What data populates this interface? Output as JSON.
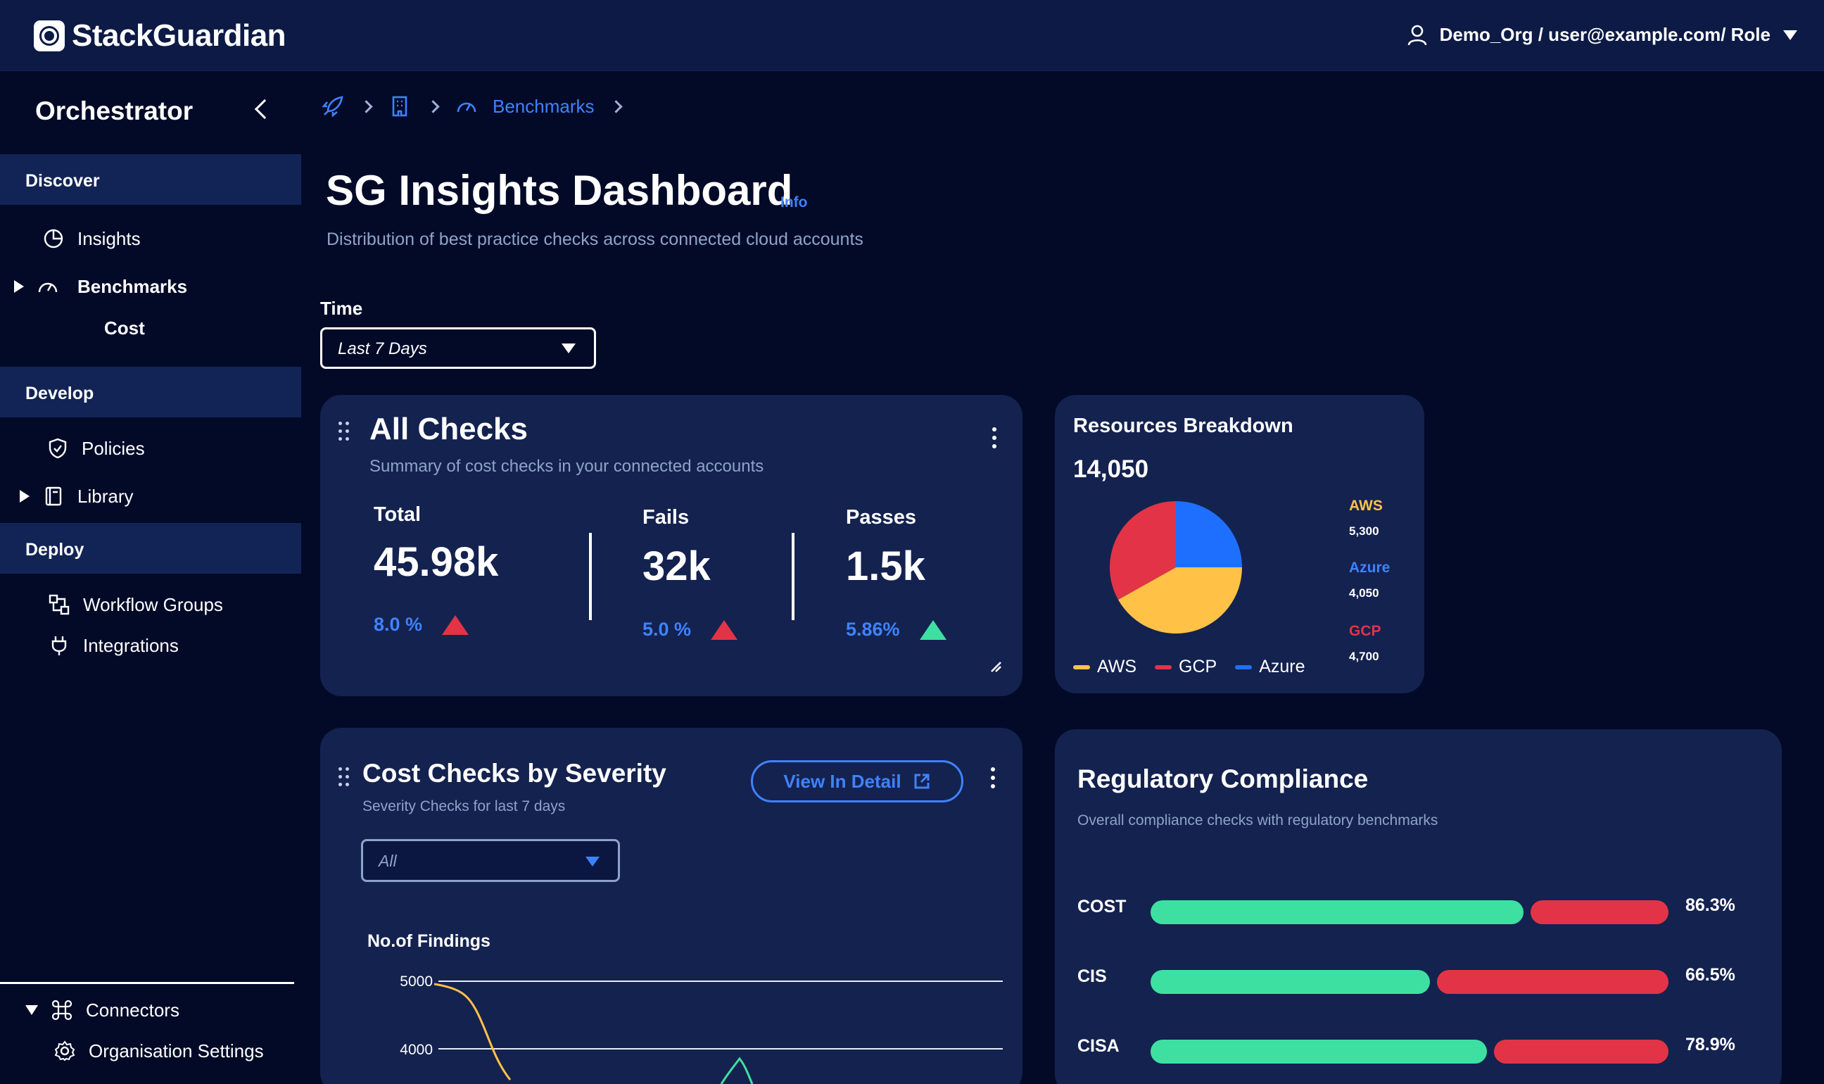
{
  "header": {
    "brand": "StackGuardian",
    "user_label": "Demo_Org / user@example.com/ Role"
  },
  "sidebar": {
    "title": "Orchestrator",
    "sections": {
      "discover": "Discover",
      "develop": "Develop",
      "deploy": "Deploy"
    },
    "items": {
      "insights": "Insights",
      "benchmarks": "Benchmarks",
      "cost": "Cost",
      "policies": "Policies",
      "library": "Library",
      "workflow_groups": "Workflow Groups",
      "integrations": "Integrations",
      "connectors": "Connectors",
      "org_settings": "Organisation Settings"
    }
  },
  "breadcrumb": {
    "current": "Benchmarks"
  },
  "page": {
    "title": "SG Insights Dashboard",
    "info": "Info",
    "subtitle": "Distribution of best practice checks across connected cloud accounts"
  },
  "time_filter": {
    "label": "Time",
    "value": "Last 7 Days"
  },
  "all_checks": {
    "title": "All Checks",
    "subtitle": "Summary of cost checks in your connected accounts",
    "total": {
      "label": "Total",
      "value": "45.98k",
      "pct": "8.0 %"
    },
    "fails": {
      "label": "Fails",
      "value": "32k",
      "pct": "5.0 %"
    },
    "passes": {
      "label": "Passes",
      "value": "1.5k",
      "pct": "5.86%"
    }
  },
  "resources": {
    "title": "Resources Breakdown",
    "total": "14,050",
    "aws_label": "AWS",
    "aws_value": "5,300",
    "azure_label": "Azure",
    "azure_value": "4,050",
    "gcp_label": "GCP",
    "gcp_value": "4,700",
    "legend": [
      "AWS",
      "GCP",
      "Azure"
    ],
    "colors": {
      "aws": "#ffc247",
      "gcp": "#e23446",
      "azure": "#1f6fff"
    }
  },
  "severity": {
    "title": "Cost Checks by Severity",
    "subtitle": "Severity Checks for last 7 days",
    "view_button": "View In Detail",
    "filter_value": "All",
    "y_label": "No.of Findings",
    "ticks": [
      "5000",
      "4000"
    ]
  },
  "compliance": {
    "title": "Regulatory Compliance",
    "subtitle": "Overall compliance checks with regulatory benchmarks",
    "rows": [
      {
        "label": "COST",
        "pct_text": "86.3%",
        "pass": 0.72
      },
      {
        "label": "CIS",
        "pct_text": "66.5%",
        "pass": 0.54
      },
      {
        "label": "CISA",
        "pct_text": "78.9%",
        "pass": 0.65
      }
    ]
  }
}
